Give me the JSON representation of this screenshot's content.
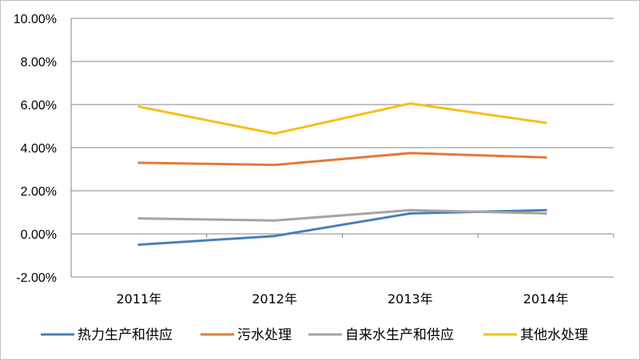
{
  "chart_data": {
    "type": "line",
    "title": "",
    "xlabel": "",
    "ylabel": "",
    "categories": [
      "2011年",
      "2012年",
      "2013年",
      "2014年"
    ],
    "ylim": [
      -2,
      10
    ],
    "yticks": [
      -2,
      0,
      2,
      4,
      6,
      8,
      10
    ],
    "ytick_labels": [
      "-2.00%",
      "0.00%",
      "2.00%",
      "4.00%",
      "6.00%",
      "8.00%",
      "10.00%"
    ],
    "grid": "horizontal",
    "legend_position": "bottom",
    "series": [
      {
        "name": "热力生产和供应",
        "color": "#4a7ebb",
        "values": [
          -0.5,
          -0.1,
          0.95,
          1.1
        ]
      },
      {
        "name": "污水处理",
        "color": "#e07b39",
        "values": [
          3.3,
          3.2,
          3.75,
          3.55
        ]
      },
      {
        "name": "自来水生产和供应",
        "color": "#a5a5a5",
        "values": [
          0.72,
          0.62,
          1.1,
          0.95
        ]
      },
      {
        "name": "其他水处理",
        "color": "#f5c018",
        "values": [
          5.9,
          4.65,
          6.05,
          5.15
        ]
      }
    ]
  }
}
